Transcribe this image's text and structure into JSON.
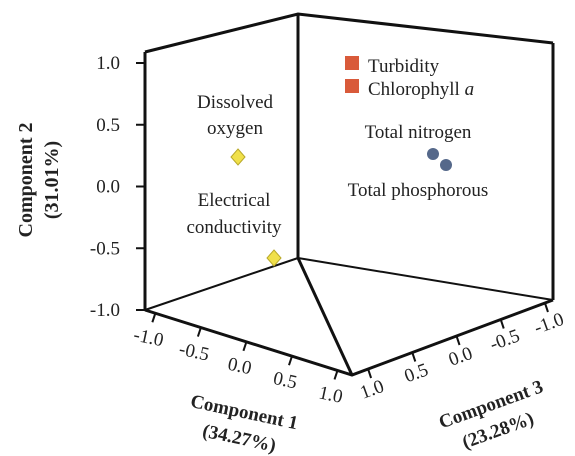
{
  "chart_data": {
    "type": "scatter",
    "subtype": "3d-loadings",
    "axes": {
      "x": {
        "label": "Component 1",
        "variance": "(34.27%)",
        "range": [
          -1.0,
          1.0
        ],
        "ticks": [
          "-1.0",
          "-0.5",
          "0.0",
          "0.5",
          "1.0"
        ]
      },
      "y": {
        "label": "Component 2",
        "variance": "(31.01%)",
        "range": [
          -1.0,
          1.0
        ],
        "ticks": [
          "1.0",
          "0.5",
          "0.0",
          "-0.5",
          "-1.0"
        ]
      },
      "z": {
        "label": "Component 3",
        "variance": "(23.28%)",
        "range": [
          -1.0,
          1.0
        ],
        "ticks": [
          "1.0",
          "0.5",
          "0.0",
          "-0.5",
          "-1.0"
        ]
      }
    },
    "points": [
      {
        "label": "Dissolved oxygen",
        "lines": [
          "Dissolved",
          "oxygen"
        ],
        "group": "diamond",
        "color": "#f0e04a"
      },
      {
        "label": "Electrical conductivity",
        "lines": [
          "Electrical",
          "conductivity"
        ],
        "group": "diamond",
        "color": "#f0e04a"
      },
      {
        "label": "Turbidity",
        "group": "square",
        "color": "#d95a3a"
      },
      {
        "label": "Chlorophyll a",
        "group": "square",
        "color": "#d95a3a"
      },
      {
        "label": "Total nitrogen",
        "group": "circle",
        "color": "#55688a"
      },
      {
        "label": "Total phosphorous",
        "group": "circle",
        "color": "#55688a"
      }
    ],
    "grid": false,
    "legend": "none"
  }
}
